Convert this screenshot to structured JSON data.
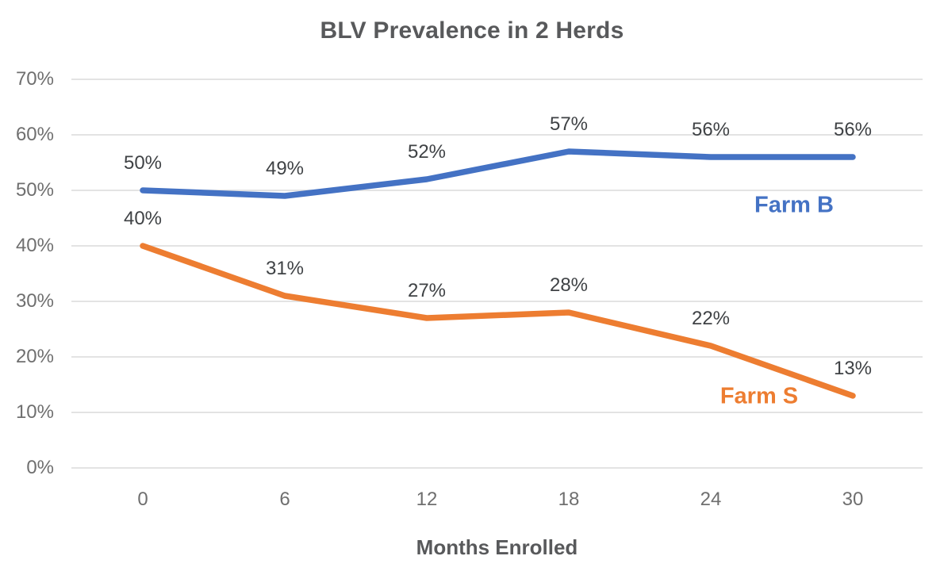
{
  "chart_data": {
    "type": "line",
    "title": "BLV Prevalence in 2 Herds",
    "xlabel": "Months Enrolled",
    "ylabel": "",
    "x": [
      0,
      6,
      12,
      18,
      24,
      30
    ],
    "x_tick_labels": [
      "0",
      "6",
      "12",
      "18",
      "24",
      "30"
    ],
    "y_tick_labels": [
      "70%",
      "60%",
      "50%",
      "40%",
      "30%",
      "20%",
      "10%",
      "0%"
    ],
    "ylim": [
      0,
      70
    ],
    "y_tick_step": 10,
    "grid": true,
    "legend_position": "inline-series-labels",
    "series": [
      {
        "name": "Farm B",
        "color": "#4472C4",
        "values": [
          50,
          49,
          52,
          57,
          56,
          56
        ],
        "data_labels": [
          "50%",
          "49%",
          "52%",
          "57%",
          "56%",
          "56%"
        ]
      },
      {
        "name": "Farm S",
        "color": "#ED7D31",
        "values": [
          40,
          31,
          27,
          28,
          22,
          13
        ],
        "data_labels": [
          "40%",
          "31%",
          "27%",
          "28%",
          "22%",
          "13%"
        ]
      }
    ],
    "colors": {
      "title_text": "#58595b",
      "axis_tick_text": "#6f6f6f",
      "data_label_text": "#3f4245",
      "gridline": "#e3e3e3",
      "background": "#ffffff"
    }
  }
}
